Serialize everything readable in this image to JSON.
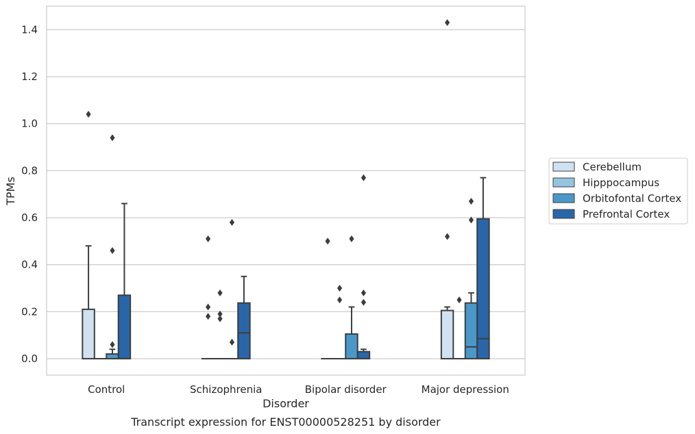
{
  "caption": "Transcript expression for ENST00000528251 by disorder",
  "chart_data": {
    "type": "box",
    "xlabel": "Disorder",
    "ylabel": "TPMs",
    "ylim": [
      -0.07,
      1.5
    ],
    "yticks": [
      0.0,
      0.2,
      0.4,
      0.6,
      0.8,
      1.0,
      1.2,
      1.4
    ],
    "ytick_labels": [
      "0.0",
      "0.2",
      "0.4",
      "0.6",
      "0.8",
      "1.0",
      "1.2",
      "1.4"
    ],
    "grid": "horizontal",
    "legend_position": "right",
    "categories": [
      "Control",
      "Schizophrenia",
      "Bipolar disorder",
      "Major depression"
    ],
    "series": [
      {
        "name": "Cerebellum",
        "color": "#d0e1f2",
        "boxes": [
          {
            "q1": 0.0,
            "median": 0.0,
            "q3": 0.21,
            "whisker_low": 0.0,
            "whisker_high": 0.48,
            "outliers": [
              1.04
            ]
          },
          {
            "q1": 0.0,
            "median": 0.0,
            "q3": 0.0,
            "whisker_low": 0.0,
            "whisker_high": 0.0,
            "outliers": [
              0.51,
              0.22,
              0.18
            ]
          },
          {
            "q1": 0.0,
            "median": 0.0,
            "q3": 0.0,
            "whisker_low": 0.0,
            "whisker_high": 0.0,
            "outliers": [
              0.5
            ]
          },
          {
            "q1": 0.0,
            "median": 0.0,
            "q3": 0.205,
            "whisker_low": 0.0,
            "whisker_high": 0.22,
            "outliers": [
              1.43,
              0.52
            ]
          }
        ]
      },
      {
        "name": "Hipppocampus",
        "color": "#94c4df",
        "boxes": [
          {
            "q1": 0.0,
            "median": 0.0,
            "q3": 0.0,
            "whisker_low": 0.0,
            "whisker_high": 0.0,
            "outliers": []
          },
          {
            "q1": 0.0,
            "median": 0.0,
            "q3": 0.0,
            "whisker_low": 0.0,
            "whisker_high": 0.0,
            "outliers": [
              0.28,
              0.19,
              0.17
            ]
          },
          {
            "q1": 0.0,
            "median": 0.0,
            "q3": 0.0,
            "whisker_low": 0.0,
            "whisker_high": 0.0,
            "outliers": [
              0.3,
              0.25
            ]
          },
          {
            "q1": 0.0,
            "median": 0.0,
            "q3": 0.0,
            "whisker_low": 0.0,
            "whisker_high": 0.0,
            "outliers": [
              0.25
            ]
          }
        ]
      },
      {
        "name": "Orbitofontal Cortex",
        "color": "#4a98c9",
        "boxes": [
          {
            "q1": 0.0,
            "median": 0.0,
            "q3": 0.02,
            "whisker_low": 0.0,
            "whisker_high": 0.04,
            "outliers": [
              0.94,
              0.46,
              0.06
            ]
          },
          {
            "q1": 0.0,
            "median": 0.0,
            "q3": 0.0,
            "whisker_low": 0.0,
            "whisker_high": 0.0,
            "outliers": [
              0.58,
              0.07
            ]
          },
          {
            "q1": 0.0,
            "median": 0.0,
            "q3": 0.105,
            "whisker_low": 0.0,
            "whisker_high": 0.22,
            "outliers": [
              0.51
            ]
          },
          {
            "q1": 0.0,
            "median": 0.05,
            "q3": 0.237,
            "whisker_low": 0.0,
            "whisker_high": 0.28,
            "outliers": [
              0.67,
              0.59
            ]
          }
        ]
      },
      {
        "name": "Prefrontal Cortex",
        "color": "#2966a9",
        "boxes": [
          {
            "q1": 0.0,
            "median": 0.0,
            "q3": 0.27,
            "whisker_low": 0.0,
            "whisker_high": 0.66,
            "outliers": []
          },
          {
            "q1": 0.0,
            "median": 0.11,
            "q3": 0.237,
            "whisker_low": 0.0,
            "whisker_high": 0.35,
            "outliers": []
          },
          {
            "q1": 0.0,
            "median": 0.0,
            "q3": 0.03,
            "whisker_low": 0.0,
            "whisker_high": 0.04,
            "outliers": [
              0.77,
              0.28,
              0.24
            ]
          },
          {
            "q1": 0.0,
            "median": 0.085,
            "q3": 0.595,
            "whisker_low": 0.0,
            "whisker_high": 0.77,
            "outliers": []
          }
        ]
      }
    ]
  }
}
